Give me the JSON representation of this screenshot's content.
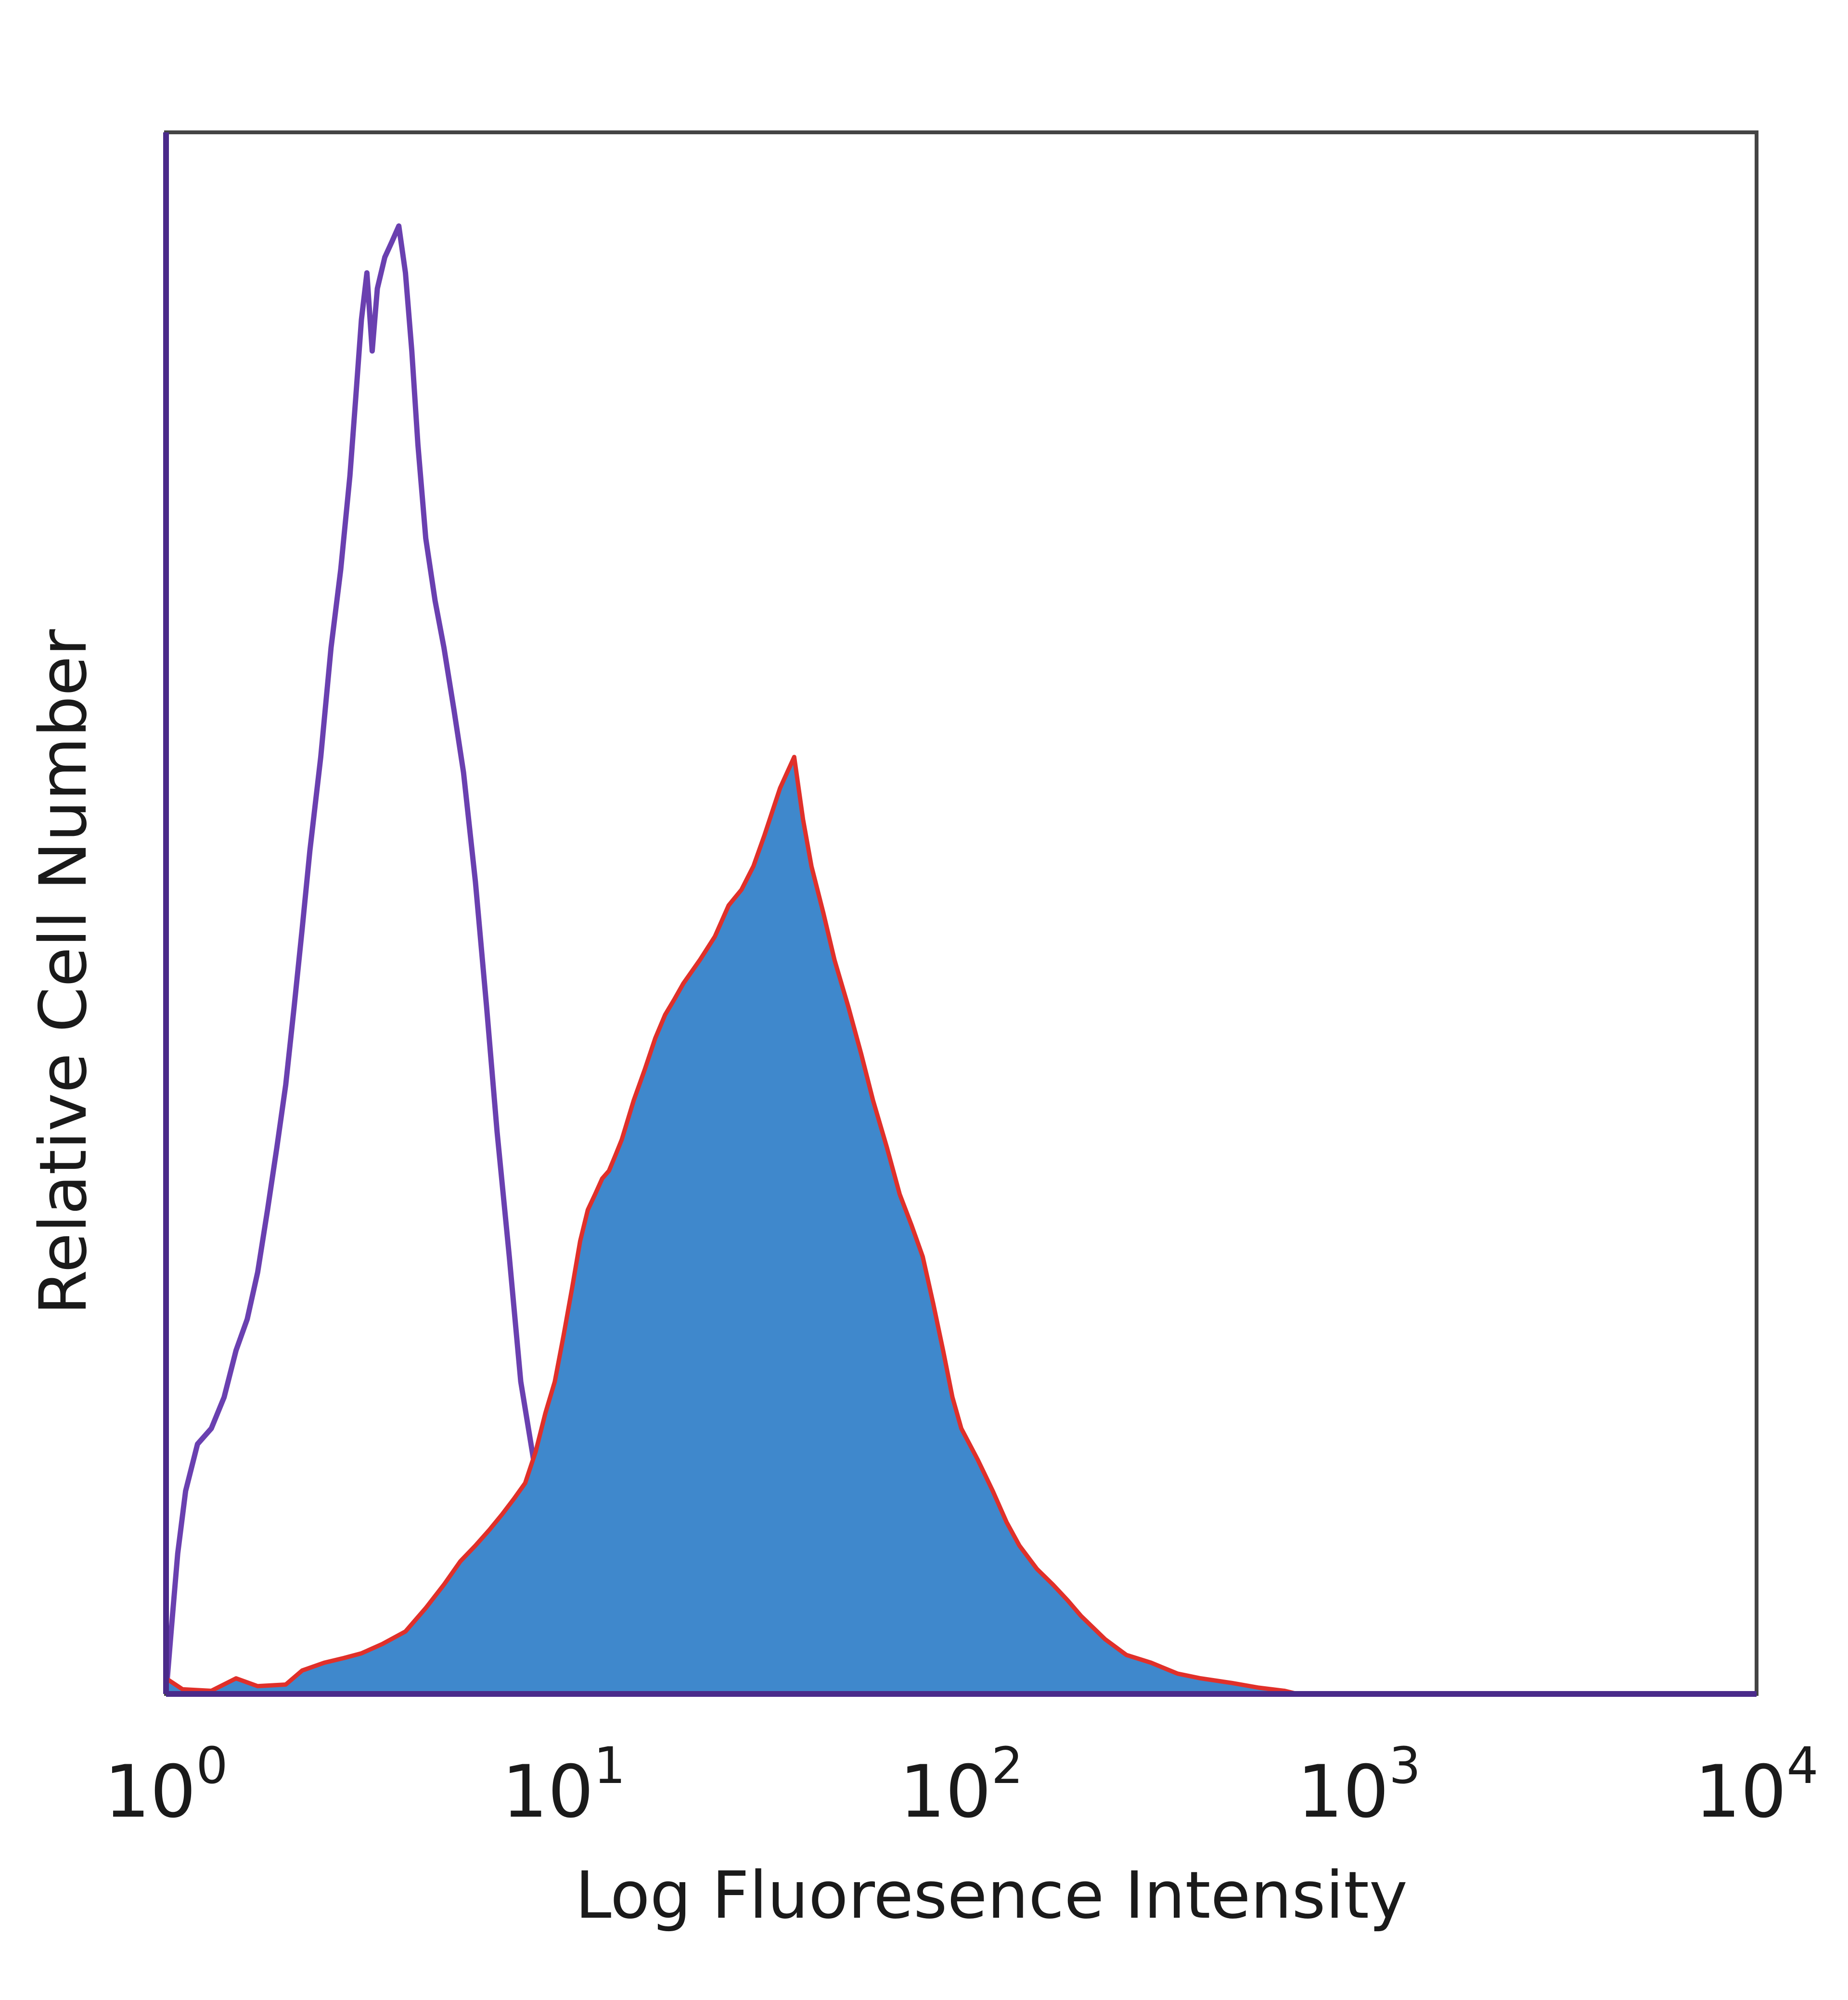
{
  "chart_data": {
    "type": "area",
    "xscale": "log",
    "xlim": [
      1,
      10000
    ],
    "ylim": [
      0,
      100
    ],
    "grid": false,
    "legend": "none",
    "xlabel": "Log Fluoresence Intensity",
    "ylabel": "Relative Cell Number",
    "x_ticks": [
      {
        "value": 1,
        "base": "10",
        "exp": "0"
      },
      {
        "value": 10,
        "base": "10",
        "exp": "1"
      },
      {
        "value": 100,
        "base": "10",
        "exp": "2"
      },
      {
        "value": 1000,
        "base": "10",
        "exp": "3"
      },
      {
        "value": 10000,
        "base": "10",
        "exp": "4"
      }
    ],
    "series": [
      {
        "style": "line",
        "color": "#6a40b0",
        "points": [
          [
            1.0,
            0
          ],
          [
            1.03,
            4
          ],
          [
            1.07,
            9
          ],
          [
            1.12,
            13
          ],
          [
            1.2,
            16
          ],
          [
            1.3,
            17
          ],
          [
            1.4,
            19
          ],
          [
            1.5,
            22
          ],
          [
            1.6,
            24
          ],
          [
            1.7,
            27
          ],
          [
            1.8,
            31
          ],
          [
            1.9,
            35
          ],
          [
            2.0,
            39
          ],
          [
            2.1,
            44
          ],
          [
            2.2,
            49
          ],
          [
            2.3,
            54
          ],
          [
            2.45,
            60
          ],
          [
            2.6,
            67
          ],
          [
            2.75,
            72
          ],
          [
            2.9,
            78
          ],
          [
            3.0,
            83
          ],
          [
            3.1,
            88
          ],
          [
            3.2,
            91
          ],
          [
            3.3,
            86
          ],
          [
            3.4,
            90
          ],
          [
            3.55,
            92
          ],
          [
            3.7,
            93
          ],
          [
            3.85,
            94
          ],
          [
            4.0,
            91
          ],
          [
            4.15,
            86
          ],
          [
            4.3,
            80
          ],
          [
            4.5,
            74
          ],
          [
            4.75,
            70
          ],
          [
            5.0,
            67
          ],
          [
            5.3,
            63
          ],
          [
            5.6,
            59
          ],
          [
            6.0,
            52
          ],
          [
            6.4,
            44
          ],
          [
            6.8,
            36
          ],
          [
            7.3,
            28
          ],
          [
            7.8,
            20
          ],
          [
            8.4,
            15
          ],
          [
            9.0,
            11
          ],
          [
            9.6,
            7
          ],
          [
            10.2,
            4
          ],
          [
            11.0,
            2.5
          ],
          [
            12.0,
            1.5
          ],
          [
            13.5,
            1
          ],
          [
            15.0,
            0.6
          ],
          [
            17.0,
            0.3
          ],
          [
            19.0,
            0.1
          ],
          [
            21.0,
            0
          ]
        ]
      },
      {
        "style": "filled",
        "color": "#3f88cc",
        "edge_color": "#e0302a",
        "points": [
          [
            1.0,
            1
          ],
          [
            1.1,
            0.3
          ],
          [
            1.3,
            0.2
          ],
          [
            1.5,
            1
          ],
          [
            1.7,
            0.5
          ],
          [
            2.0,
            0.6
          ],
          [
            2.2,
            1.5
          ],
          [
            2.5,
            2
          ],
          [
            2.8,
            2.3
          ],
          [
            3.1,
            2.6
          ],
          [
            3.5,
            3.2
          ],
          [
            4.0,
            4
          ],
          [
            4.5,
            5.5
          ],
          [
            5.0,
            7
          ],
          [
            5.5,
            8.5
          ],
          [
            6.0,
            9.5
          ],
          [
            6.5,
            10.5
          ],
          [
            7.0,
            11.5
          ],
          [
            7.5,
            12.5
          ],
          [
            8.0,
            13.5
          ],
          [
            8.5,
            15.5
          ],
          [
            9.0,
            18
          ],
          [
            9.5,
            20
          ],
          [
            10.0,
            23
          ],
          [
            10.5,
            26
          ],
          [
            11.0,
            29
          ],
          [
            11.5,
            31
          ],
          [
            12.0,
            32
          ],
          [
            12.5,
            33
          ],
          [
            13.0,
            33.5
          ],
          [
            13.5,
            34.5
          ],
          [
            14.0,
            35.5
          ],
          [
            15.0,
            38
          ],
          [
            16.0,
            40
          ],
          [
            17.0,
            42
          ],
          [
            18.0,
            43.5
          ],
          [
            19.0,
            44.5
          ],
          [
            20.0,
            45.5
          ],
          [
            22.0,
            47
          ],
          [
            24.0,
            48.5
          ],
          [
            26.0,
            50.5
          ],
          [
            28.0,
            51.5
          ],
          [
            30.0,
            53
          ],
          [
            32.0,
            55
          ],
          [
            35.0,
            58
          ],
          [
            38.0,
            60
          ],
          [
            40.0,
            56
          ],
          [
            42.0,
            53
          ],
          [
            45.0,
            50
          ],
          [
            48.0,
            47
          ],
          [
            52.0,
            44
          ],
          [
            56.0,
            41
          ],
          [
            60.0,
            38
          ],
          [
            65.0,
            35
          ],
          [
            70.0,
            32
          ],
          [
            75.0,
            30
          ],
          [
            80.0,
            28
          ],
          [
            85.0,
            25
          ],
          [
            90.0,
            22
          ],
          [
            95.0,
            19
          ],
          [
            100.0,
            17
          ],
          [
            110.0,
            15
          ],
          [
            120.0,
            13
          ],
          [
            130.0,
            11
          ],
          [
            140.0,
            9.5
          ],
          [
            155.0,
            8
          ],
          [
            170.0,
            7
          ],
          [
            185.0,
            6
          ],
          [
            200.0,
            5
          ],
          [
            230.0,
            3.5
          ],
          [
            260.0,
            2.5
          ],
          [
            300.0,
            2
          ],
          [
            350.0,
            1.3
          ],
          [
            400.0,
            1
          ],
          [
            480.0,
            0.7
          ],
          [
            560.0,
            0.4
          ],
          [
            650.0,
            0.2
          ],
          [
            700.0,
            0
          ]
        ]
      }
    ]
  }
}
